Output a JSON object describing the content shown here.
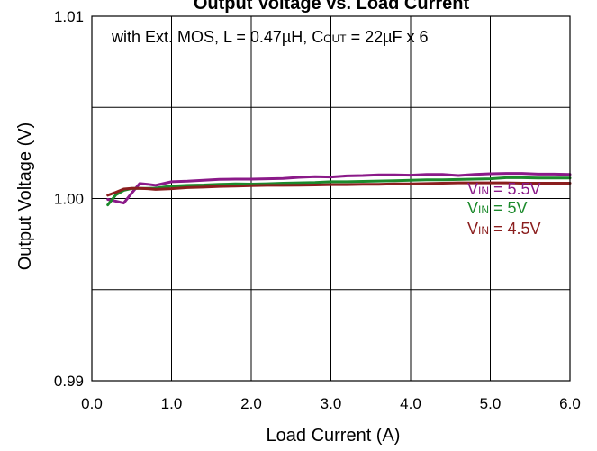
{
  "chart_data": {
    "type": "line",
    "title": "Output Voltage vs. Load Current",
    "annotation": {
      "prefix": "with Ext. MOS, L = 0.47µH, C",
      "sub": "OUT",
      "suffix": " = 22µF x 6"
    },
    "xlabel": "Load Current (A)",
    "ylabel": "Output Voltage (V)",
    "xlim": [
      0,
      6
    ],
    "ylim": [
      0.99,
      1.01
    ],
    "x_ticks": [
      0,
      1,
      2,
      3,
      4,
      5,
      6
    ],
    "x_tick_labels": [
      "0.0",
      "1.0",
      "2.0",
      "3.0",
      "4.0",
      "5.0",
      "6.0"
    ],
    "y_ticks": [
      0.99,
      1.0,
      1.01
    ],
    "y_tick_labels": [
      "0.99",
      "1.00",
      "1.01"
    ],
    "y_gridlines": [
      0.995,
      1.0,
      1.005
    ],
    "x_gridlines": [
      1,
      2,
      3,
      4,
      5
    ],
    "grid": true,
    "legend_placement": "right",
    "x": [
      0.2,
      0.3,
      0.4,
      0.5,
      0.6,
      0.7,
      0.8,
      0.9,
      1.0,
      1.2,
      1.4,
      1.6,
      1.8,
      2.0,
      2.2,
      2.4,
      2.6,
      2.8,
      3.0,
      3.2,
      3.4,
      3.6,
      3.8,
      4.0,
      4.2,
      4.4,
      4.6,
      4.8,
      5.0,
      5.2,
      5.4,
      5.6,
      5.8,
      6.0
    ],
    "series": [
      {
        "name": "V_IN = 5.5V",
        "label_main": "V",
        "label_sub": "IN",
        "label_rest": " = 5.5V",
        "color": "#8b1a89",
        "values": [
          0.99995,
          0.99985,
          0.99975,
          1.0003,
          1.00082,
          1.00078,
          1.00072,
          1.00082,
          1.00092,
          1.00095,
          1.001,
          1.00105,
          1.00106,
          1.00106,
          1.00108,
          1.0011,
          1.00116,
          1.0012,
          1.00118,
          1.00124,
          1.00126,
          1.0013,
          1.0013,
          1.00128,
          1.00132,
          1.00132,
          1.00126,
          1.00132,
          1.00136,
          1.00138,
          1.00138,
          1.00134,
          1.00134,
          1.00132
        ]
      },
      {
        "name": "V_IN = 5V",
        "label_main": "V",
        "label_sub": "IN",
        "label_rest": " = 5V",
        "color": "#1c8a2c",
        "values": [
          0.99965,
          1.0002,
          1.00045,
          1.00055,
          1.00056,
          1.00056,
          1.00057,
          1.00062,
          1.00068,
          1.00072,
          1.00074,
          1.00078,
          1.0008,
          1.00079,
          1.00081,
          1.00084,
          1.00086,
          1.00088,
          1.00092,
          1.00092,
          1.00094,
          1.00096,
          1.00098,
          1.001,
          1.00102,
          1.00102,
          1.00104,
          1.00106,
          1.00108,
          1.00114,
          1.00114,
          1.00112,
          1.00112,
          1.00112
        ]
      },
      {
        "name": "V_IN = 4.5V",
        "label_main": "V",
        "label_sub": "IN",
        "label_rest": " = 4.5V",
        "color": "#8b1e1e",
        "values": [
          1.00018,
          1.00034,
          1.00052,
          1.00056,
          1.00056,
          1.00054,
          1.0005,
          1.00052,
          1.00054,
          1.0006,
          1.00062,
          1.00066,
          1.00068,
          1.0007,
          1.00072,
          1.00072,
          1.00073,
          1.00074,
          1.00076,
          1.00076,
          1.00078,
          1.00078,
          1.0008,
          1.0008,
          1.00082,
          1.00084,
          1.00086,
          1.00086,
          1.00086,
          1.00086,
          1.00084,
          1.00084,
          1.00084,
          1.00084
        ]
      }
    ]
  }
}
